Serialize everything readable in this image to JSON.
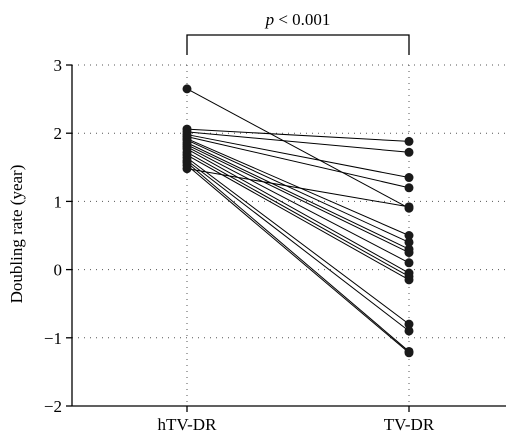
{
  "chart_data": {
    "type": "line",
    "title": "",
    "xlabel": "",
    "ylabel": "Doubling rate (year)",
    "categories": [
      "hTV-DR",
      "TV-DR"
    ],
    "ylim": [
      -2,
      3
    ],
    "yticks": [
      -2,
      -1,
      0,
      1,
      2,
      3
    ],
    "ytick_labels": [
      "−2",
      "−1",
      "0",
      "1",
      "2",
      "3"
    ],
    "grid": "dotted",
    "annotation": {
      "prefix": "p",
      "text": " < 0.001"
    },
    "pairs": [
      [
        2.65,
        0.9
      ],
      [
        2.06,
        1.88
      ],
      [
        2.02,
        1.72
      ],
      [
        1.98,
        1.35
      ],
      [
        1.95,
        1.2
      ],
      [
        1.92,
        0.5
      ],
      [
        1.9,
        0.4
      ],
      [
        1.86,
        0.3
      ],
      [
        1.83,
        0.25
      ],
      [
        1.8,
        0.1
      ],
      [
        1.77,
        -0.05
      ],
      [
        1.72,
        -0.1
      ],
      [
        1.68,
        -0.15
      ],
      [
        1.64,
        -0.8
      ],
      [
        1.6,
        -0.9
      ],
      [
        1.57,
        -1.2
      ],
      [
        1.53,
        -1.22
      ],
      [
        1.48,
        0.92
      ]
    ]
  }
}
